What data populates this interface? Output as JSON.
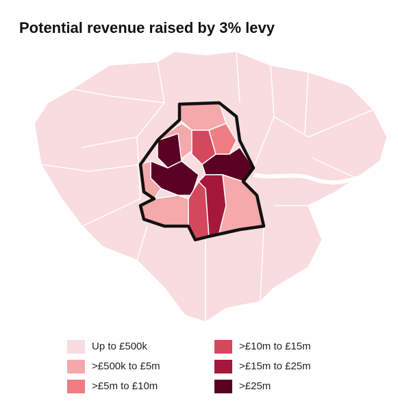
{
  "title": "Potential revenue raised by 3% levy",
  "legend": [
    {
      "label": "Up to £500k",
      "color": "#f9dcdf"
    },
    {
      "label": ">£500k to £5m",
      "color": "#f4a9aa"
    },
    {
      "label": ">£5m to £10m",
      "color": "#ee7e82"
    },
    {
      "label": ">£10m to £15m",
      "color": "#d4485e"
    },
    {
      "label": ">£15m to £25m",
      "color": "#a5173b"
    },
    {
      "label": ">£25m",
      "color": "#5a0022"
    }
  ]
}
